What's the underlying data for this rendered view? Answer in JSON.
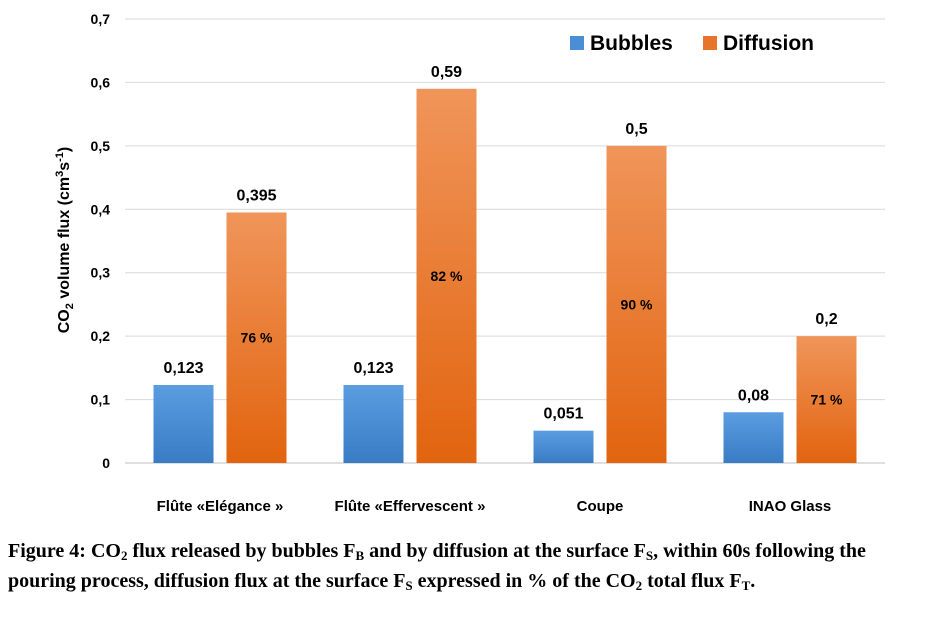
{
  "chart_data": {
    "type": "bar",
    "categories": [
      "Flûte «Elégance »",
      "Flûte «Effervescent »",
      "Coupe",
      "INAO Glass"
    ],
    "series": [
      {
        "name": "Bubbles",
        "values": [
          0.123,
          0.123,
          0.051,
          0.08
        ],
        "labels": [
          "0,123",
          "0,123",
          "0,051",
          "0,08"
        ],
        "color": "#4a8fd6"
      },
      {
        "name": "Diffusion",
        "values": [
          0.395,
          0.59,
          0.5,
          0.2
        ],
        "labels": [
          "0,395",
          "0,59",
          "0,5",
          "0,2"
        ],
        "color": "#e8732a",
        "inner_labels": [
          "76 %",
          "82 %",
          "90 %",
          "71 %"
        ]
      }
    ],
    "ylabel": "CO2 volume flux (cm3s-1)",
    "ylim": [
      0,
      0.7
    ],
    "yticks": [
      0,
      0.1,
      0.2,
      0.3,
      0.4,
      0.5,
      0.6,
      0.7
    ],
    "ytick_labels": [
      "0",
      "0,1",
      "0,2",
      "0,3",
      "0,4",
      "0,5",
      "0,6",
      "0,7"
    ],
    "grid": true,
    "legend_position": "top-right"
  },
  "caption": {
    "prefix": "Figure 4: CO",
    "sub1": "2",
    "t1": " flux released by bubbles F",
    "sub2": "B",
    "t2": " and by diffusion at the surface F",
    "sub3": "S",
    "t3": ", within 60s following the pouring process, diffusion flux at the surface F",
    "sub4": "S",
    "t4": " expressed in % of the CO",
    "sub5": "2",
    "t5": " total flux F",
    "sub6": "T",
    "t6": "."
  }
}
